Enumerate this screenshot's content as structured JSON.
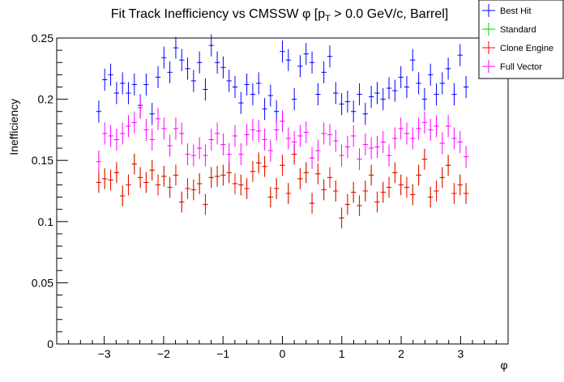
{
  "chart_data": {
    "type": "scatter",
    "title": "Fit Track Inefficiency vs CMSSW φ [pₜ > 0.0 GeV/c, Barrel]",
    "title_parts": {
      "lead": "Fit Track Inefficiency vs CMSSW ",
      "phi": "φ",
      "open": " [p",
      "sub": "T",
      "rest": " > 0.0 GeV/c, Barrel]"
    },
    "xlabel": "φ",
    "ylabel": "Inefficiency",
    "xlim": [
      -3.8,
      3.8
    ],
    "ylim": [
      0,
      0.25
    ],
    "x_ticks": [
      {
        "value": -3,
        "label": "−3"
      },
      {
        "value": -2,
        "label": "−2"
      },
      {
        "value": -1,
        "label": "−1"
      },
      {
        "value": 0,
        "label": "0"
      },
      {
        "value": 1,
        "label": "1"
      },
      {
        "value": 2,
        "label": "2"
      },
      {
        "value": 3,
        "label": "3"
      }
    ],
    "y_ticks": [
      {
        "value": 0,
        "label": "0"
      },
      {
        "value": 0.05,
        "label": "0.05"
      },
      {
        "value": 0.1,
        "label": "0.1"
      },
      {
        "value": 0.15,
        "label": "0.15"
      },
      {
        "value": 0.2,
        "label": "0.2"
      },
      {
        "value": 0.25,
        "label": "0.25"
      }
    ],
    "grid": false,
    "legend_position": "top-right",
    "bin_width": 0.0997,
    "x": [
      -3.092,
      -2.992,
      -2.892,
      -2.792,
      -2.692,
      -2.593,
      -2.493,
      -2.393,
      -2.294,
      -2.194,
      -2.094,
      -1.995,
      -1.895,
      -1.795,
      -1.695,
      -1.596,
      -1.496,
      -1.396,
      -1.297,
      -1.197,
      -1.097,
      -0.997,
      -0.898,
      -0.798,
      -0.698,
      -0.599,
      -0.499,
      -0.399,
      -0.299,
      -0.2,
      -0.1,
      0.0,
      0.1,
      0.2,
      0.299,
      0.399,
      0.499,
      0.599,
      0.698,
      0.798,
      0.898,
      0.997,
      1.097,
      1.197,
      1.297,
      1.396,
      1.496,
      1.596,
      1.695,
      1.795,
      1.895,
      1.995,
      2.094,
      2.194,
      2.294,
      2.393,
      2.493,
      2.593,
      2.692,
      2.792,
      2.892,
      2.992,
      3.092
    ],
    "series": [
      {
        "name": "Best Hit",
        "color": "#0000ff",
        "err": 0.009,
        "values": [
          0.19,
          0.216,
          0.22,
          0.205,
          0.213,
          0.205,
          0.212,
          0.195,
          0.212,
          0.188,
          0.218,
          0.234,
          0.222,
          0.242,
          0.232,
          0.225,
          0.215,
          0.23,
          0.208,
          0.244,
          0.23,
          0.226,
          0.215,
          0.21,
          0.197,
          0.212,
          0.204,
          0.213,
          0.192,
          0.203,
          0.19,
          0.239,
          0.232,
          0.2,
          0.227,
          0.237,
          0.23,
          0.204,
          0.222,
          0.235,
          0.205,
          0.196,
          0.198,
          0.19,
          0.204,
          0.188,
          0.202,
          0.205,
          0.2,
          0.209,
          0.207,
          0.218,
          0.21,
          0.232,
          0.213,
          0.2,
          0.22,
          0.204,
          0.213,
          0.225,
          0.204,
          0.236,
          0.21
        ]
      },
      {
        "name": "Standard",
        "color": "#00d000",
        "err": 0.0085,
        "values": [
          0.132,
          0.135,
          0.134,
          0.14,
          0.121,
          0.13,
          0.147,
          0.136,
          0.132,
          0.142,
          0.13,
          0.137,
          0.128,
          0.138,
          0.116,
          0.127,
          0.126,
          0.131,
          0.114,
          0.136,
          0.137,
          0.138,
          0.14,
          0.131,
          0.13,
          0.127,
          0.141,
          0.148,
          0.145,
          0.12,
          0.127,
          0.146,
          0.123,
          0.155,
          0.135,
          0.14,
          0.115,
          0.139,
          0.126,
          0.136,
          0.125,
          0.103,
          0.114,
          0.124,
          0.113,
          0.125,
          0.138,
          0.116,
          0.124,
          0.128,
          0.14,
          0.13,
          0.128,
          0.122,
          0.138,
          0.151,
          0.12,
          0.125,
          0.136,
          0.146,
          0.123,
          0.13,
          0.123
        ]
      },
      {
        "name": "Clone Engine",
        "color": "#ff0000",
        "err": 0.0085,
        "values": [
          0.132,
          0.135,
          0.134,
          0.14,
          0.121,
          0.13,
          0.147,
          0.136,
          0.132,
          0.142,
          0.13,
          0.137,
          0.128,
          0.138,
          0.116,
          0.127,
          0.126,
          0.131,
          0.114,
          0.136,
          0.137,
          0.138,
          0.14,
          0.131,
          0.13,
          0.127,
          0.141,
          0.148,
          0.145,
          0.12,
          0.127,
          0.146,
          0.123,
          0.155,
          0.135,
          0.14,
          0.115,
          0.139,
          0.126,
          0.136,
          0.125,
          0.103,
          0.114,
          0.124,
          0.113,
          0.125,
          0.138,
          0.116,
          0.124,
          0.128,
          0.14,
          0.13,
          0.128,
          0.122,
          0.138,
          0.151,
          0.12,
          0.125,
          0.136,
          0.146,
          0.123,
          0.13,
          0.123
        ]
      },
      {
        "name": "Full Vector",
        "color": "#ff00ff",
        "err": 0.009,
        "values": [
          0.149,
          0.172,
          0.17,
          0.167,
          0.172,
          0.178,
          0.181,
          0.193,
          0.175,
          0.167,
          0.184,
          0.176,
          0.162,
          0.176,
          0.172,
          0.155,
          0.154,
          0.16,
          0.154,
          0.167,
          0.172,
          0.163,
          0.155,
          0.17,
          0.155,
          0.171,
          0.175,
          0.174,
          0.167,
          0.158,
          0.175,
          0.182,
          0.168,
          0.165,
          0.17,
          0.173,
          0.152,
          0.158,
          0.172,
          0.171,
          0.166,
          0.154,
          0.161,
          0.17,
          0.151,
          0.163,
          0.16,
          0.161,
          0.165,
          0.154,
          0.168,
          0.176,
          0.172,
          0.168,
          0.176,
          0.181,
          0.175,
          0.178,
          0.164,
          0.178,
          0.168,
          0.165,
          0.153
        ]
      }
    ]
  }
}
